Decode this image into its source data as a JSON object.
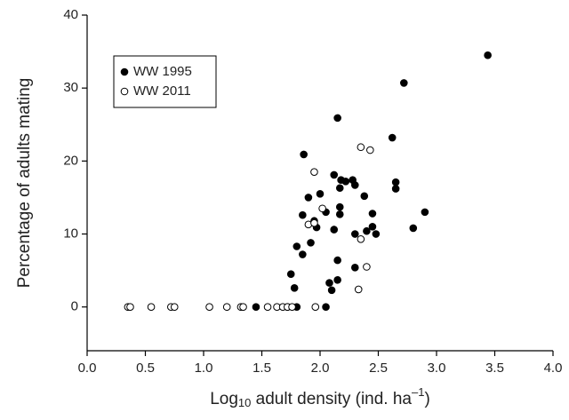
{
  "chart_data": {
    "type": "scatter",
    "y_label": "Percentage of adults mating",
    "x_label": [
      "Log",
      "10",
      " adult density (ind. ha",
      "–1",
      ")"
    ],
    "xlim": [
      0,
      4
    ],
    "xticks": [
      {
        "value": 0,
        "label": "0.0"
      },
      0.5,
      {
        "value": 1,
        "label": "1.0"
      },
      1.5,
      {
        "value": 2,
        "label": "2.0"
      },
      2.5,
      {
        "value": 3,
        "label": "3.0"
      },
      3.5,
      {
        "value": 4,
        "label": "4.0"
      }
    ],
    "ylim": [
      -6,
      40
    ],
    "yticks": [
      0,
      10,
      20,
      30,
      40
    ],
    "grid": false,
    "legend": "upper-left",
    "series": [
      {
        "name": "WW 1995",
        "color": "#000000",
        "marker": "filled",
        "x": [
          3.44,
          2.72,
          2.15,
          2.62,
          1.86,
          2.65,
          2.65,
          2.12,
          2.18,
          2.22,
          2.28,
          2.3,
          2.17,
          1.9,
          2.0,
          2.38,
          1.85,
          2.05,
          2.17,
          2.17,
          2.45,
          2.9,
          1.95,
          1.97,
          2.12,
          2.3,
          2.4,
          2.45,
          2.48,
          2.8,
          1.92,
          1.8,
          1.85,
          1.75,
          1.78,
          2.08,
          2.1,
          2.15,
          2.15,
          2.3,
          1.45,
          1.72,
          1.8,
          2.05
        ],
        "values": [
          34.5,
          30.7,
          25.9,
          23.2,
          20.9,
          17.1,
          16.2,
          18.1,
          17.4,
          17.2,
          17.4,
          16.7,
          16.3,
          15.0,
          15.5,
          15.2,
          12.6,
          13.0,
          13.7,
          12.7,
          12.8,
          13.0,
          11.8,
          10.9,
          10.6,
          10.0,
          10.4,
          11.0,
          10.0,
          10.8,
          8.8,
          8.3,
          7.2,
          4.5,
          2.6,
          3.3,
          2.3,
          3.7,
          6.4,
          5.4,
          0,
          0,
          0,
          0
        ]
      },
      {
        "name": "WW 2011",
        "color": "#000000",
        "marker": "open",
        "x": [
          1.95,
          2.35,
          2.43,
          2.02,
          1.9,
          1.95,
          2.35,
          2.4,
          2.33,
          0.35,
          0.37,
          0.55,
          0.72,
          0.75,
          1.05,
          1.2,
          1.32,
          1.34,
          1.55,
          1.63,
          1.68,
          1.72,
          1.76,
          1.96
        ],
        "values": [
          18.5,
          21.9,
          21.5,
          13.5,
          11.3,
          11.5,
          9.3,
          5.5,
          2.4,
          0,
          0,
          0,
          0,
          0,
          0,
          0,
          0,
          0,
          0,
          0,
          0,
          0,
          0,
          0
        ]
      }
    ]
  }
}
